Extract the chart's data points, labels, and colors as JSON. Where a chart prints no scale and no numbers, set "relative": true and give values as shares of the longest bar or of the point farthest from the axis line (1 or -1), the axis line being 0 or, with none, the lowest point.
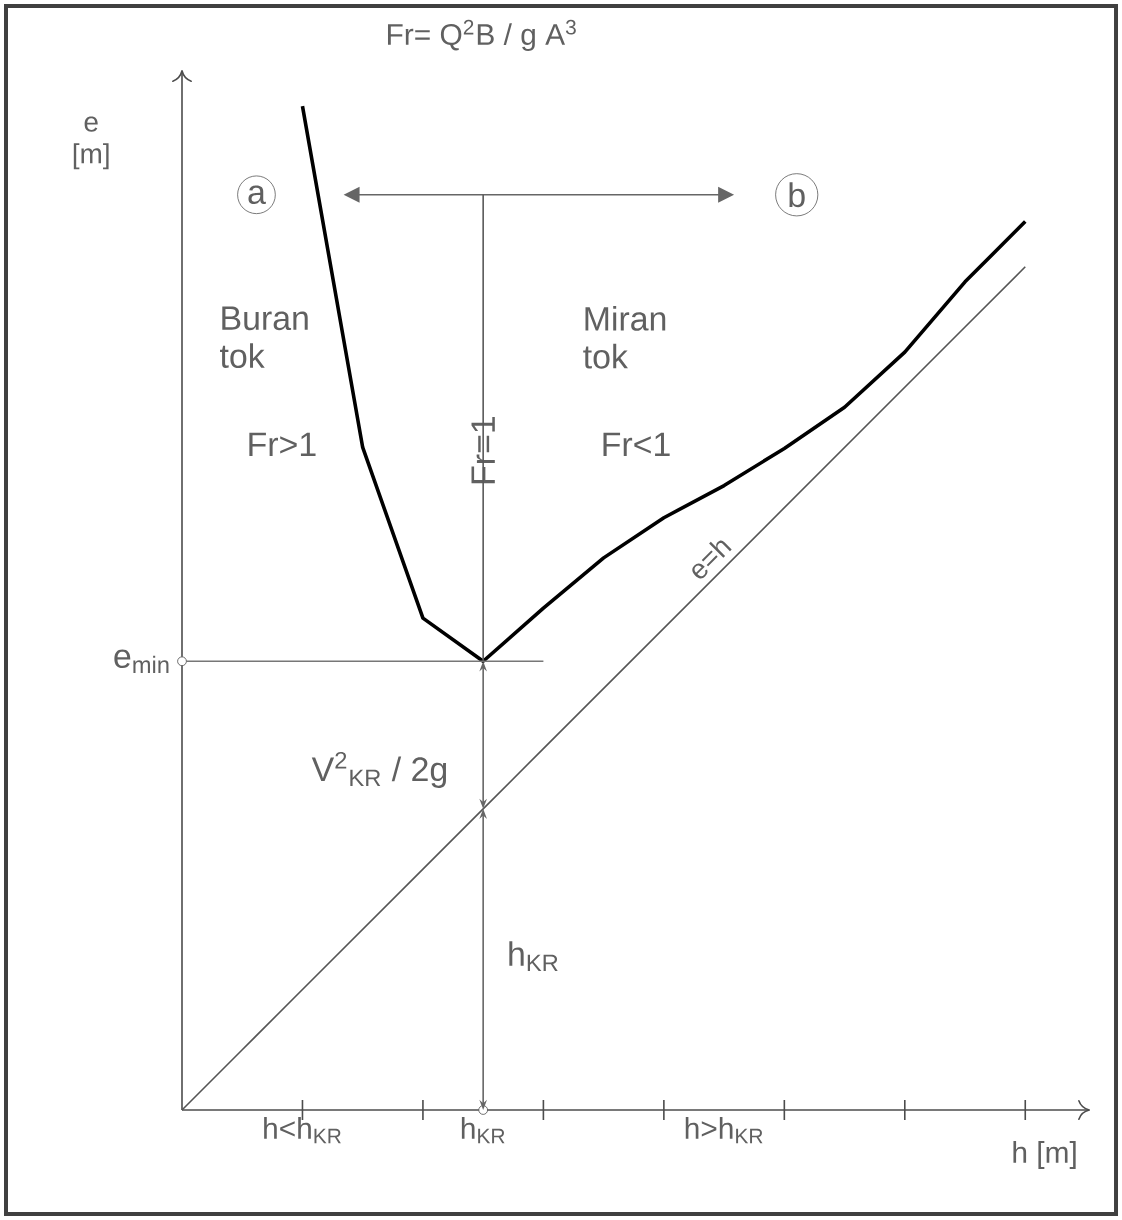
{
  "chart_data": {
    "type": "line",
    "relative": true,
    "title": "Fr= Q$^{2}$B / g A$^{3}$",
    "xlabel": "h [m]",
    "ylabel": "e [m]",
    "categories": [
      null,
      null,
      "h<h$_{KR}$",
      null,
      null,
      "h$_{KR}$",
      null,
      null,
      null,
      "h>h$_{KR}$",
      null,
      null,
      null,
      null,
      null,
      null
    ],
    "series": [
      {
        "color": "#000000",
        "values": [
          null,
          null,
          1.0,
          0.66,
          0.49,
          0.447,
          0.5,
          0.55,
          0.59,
          0.622,
          0.659,
          0.7,
          0.755,
          0.825,
          0.885,
          null
        ]
      },
      {
        "name": "e=h",
        "color": "#555555",
        "values": [
          0,
          0.06,
          0.12,
          0.18,
          0.24,
          0.3,
          0.36,
          0.42,
          0.48,
          0.54,
          0.6,
          0.66,
          0.72,
          0.78,
          0.84,
          null
        ]
      },
      {
        "color": "#777777",
        "values": [
          0.447,
          0.447,
          0.447,
          0.447,
          0.447,
          0.447,
          0.447,
          null,
          null,
          null,
          null,
          null,
          null,
          null,
          null,
          null
        ]
      }
    ],
    "legend": false,
    "grid": false,
    "marker": "none",
    "line_style": "solid",
    "annotations": [
      "a",
      "b",
      "Buran tok",
      "Fr>1",
      "Miran tok",
      "Fr<1",
      "Fr=1",
      "e$_{min}$",
      "V$^{2}$$_{KR}$ / 2g",
      "h$_{KR}$"
    ]
  }
}
